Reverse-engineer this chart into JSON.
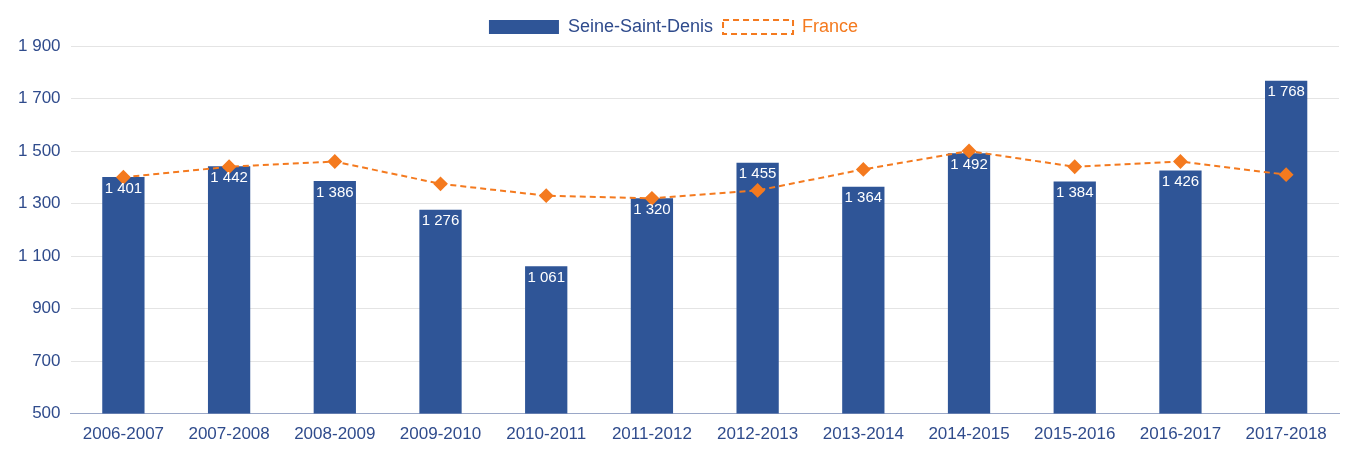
{
  "chart_data": {
    "type": "bar",
    "categories": [
      "2006-2007",
      "2007-2008",
      "2008-2009",
      "2009-2010",
      "2010-2011",
      "2011-2012",
      "2012-2013",
      "2013-2014",
      "2014-2015",
      "2015-2016",
      "2016-2017",
      "2017-2018"
    ],
    "series": [
      {
        "name": "Seine-Saint-Denis",
        "color": "#2f5597",
        "values": [
          1401,
          1442,
          1386,
          1276,
          1061,
          1320,
          1455,
          1364,
          1492,
          1384,
          1426,
          1768
        ],
        "value_labels": [
          "1 401",
          "1 442",
          "1 386",
          "1 276",
          "1 061",
          "1 320",
          "1 455",
          "1 364",
          "1 492",
          "1 384",
          "1 426",
          "1 768"
        ]
      },
      {
        "name": "France",
        "type": "line",
        "color": "#f47a1f",
        "marker": "diamond",
        "line_style": "dashed",
        "values": [
          1400,
          1440,
          1460,
          1375,
          1330,
          1320,
          1350,
          1430,
          1500,
          1440,
          1460,
          1410
        ]
      }
    ],
    "ylim": [
      500,
      1900
    ],
    "yticks": [
      {
        "value": 500,
        "label": "500"
      },
      {
        "value": 700,
        "label": "700"
      },
      {
        "value": 900,
        "label": "900"
      },
      {
        "value": 1100,
        "label": "1 100"
      },
      {
        "value": 1300,
        "label": "1 300"
      },
      {
        "value": 1500,
        "label": "1 500"
      },
      {
        "value": 1700,
        "label": "1 700"
      },
      {
        "value": 1900,
        "label": "1 900"
      }
    ],
    "grid": "y",
    "legend": "top"
  }
}
